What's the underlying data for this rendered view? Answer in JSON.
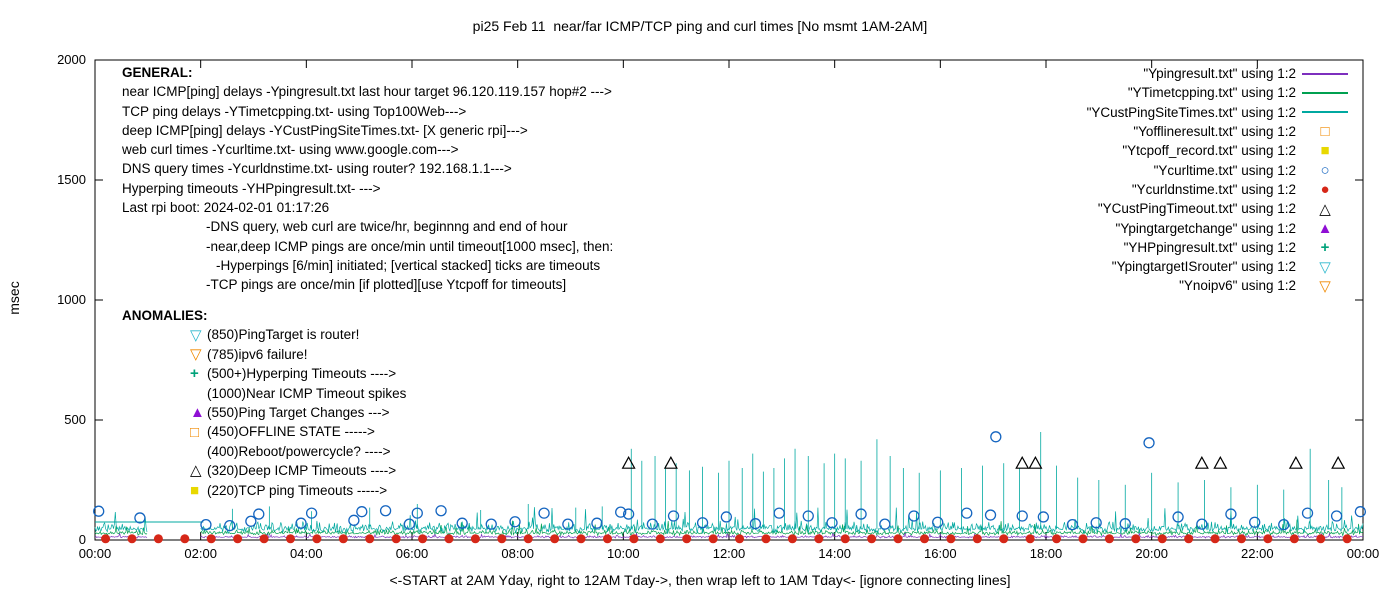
{
  "general": {
    "heading": "GENERAL:",
    "lines": [
      "near ICMP[ping] delays -Ypingresult.txt last hour target 96.120.119.157 hop#2 --->",
      "TCP ping delays -YTimetcpping.txt- using Top100Web--->",
      "deep ICMP[ping] delays -YCustPingSiteTimes.txt- [X generic rpi]--->",
      "web curl times -Ycurltime.txt- using www.google.com--->",
      "DNS query times -Ycurldnstime.txt- using router? 192.168.1.1--->",
      "Hyperping timeouts -YHPpingresult.txt- --->",
      "Last rpi boot: 2024-02-01 01:17:26"
    ],
    "notes": [
      "-DNS query, web curl are twice/hr, beginnng and end of hour",
      "-near,deep ICMP pings are once/min until timeout[1000 msec], then:",
      "-Hyperpings [6/min] initiated; [vertical stacked] ticks are timeouts",
      "-TCP pings are once/min [if plotted][use Ytcpoff for timeouts]"
    ]
  },
  "anomalies": {
    "heading": "ANOMALIES:",
    "items": [
      {
        "symbol": "triangle-down-open",
        "color": "#2FB9CE",
        "label": "(850)PingTarget is router!"
      },
      {
        "symbol": "triangle-down-open",
        "color": "#F08A00",
        "label": "(785)ipv6 failure!"
      },
      {
        "symbol": "plus",
        "color": "#00A27A",
        "label": "(500+)Hyperping Timeouts ---->"
      },
      {
        "symbol": "none",
        "color": "",
        "label": "(1000)Near ICMP Timeout spikes"
      },
      {
        "symbol": "triangle-up-filled",
        "color": "#8F0FD4",
        "label": "(550)Ping Target Changes --->"
      },
      {
        "symbol": "square-open",
        "color": "#F08A00",
        "label": "(450)OFFLINE STATE ----->"
      },
      {
        "symbol": "none",
        "color": "",
        "label": "(400)Reboot/powercycle? ---->"
      },
      {
        "symbol": "triangle-up-open",
        "color": "#000000",
        "label": "(320)Deep ICMP Timeouts ---->"
      },
      {
        "symbol": "square-filled",
        "color": "#E8D800",
        "label": "(220)TCP ping Timeouts ----->"
      }
    ]
  },
  "legend": {
    "entries": [
      {
        "label": "\"Ypingresult.txt\" using 1:2",
        "symbol": "line",
        "color": "#7D2FBE"
      },
      {
        "label": "\"YTimetcpping.txt\" using 1:2",
        "symbol": "line",
        "color": "#00A050"
      },
      {
        "label": "\"YCustPingSiteTimes.txt\" using 1:2",
        "symbol": "line",
        "color": "#00A8A0"
      },
      {
        "label": "\"Yofflineresult.txt\" using 1:2",
        "symbol": "square-open",
        "color": "#F08A00"
      },
      {
        "label": "\"Ytcpoff_record.txt\" using 1:2",
        "symbol": "square-filled",
        "color": "#E8D800"
      },
      {
        "label": "\"Ycurltime.txt\" using 1:2",
        "symbol": "circle-open",
        "color": "#1565C0"
      },
      {
        "label": "\"Ycurldnstime.txt\" using 1:2",
        "symbol": "circle-filled",
        "color": "#D62718"
      },
      {
        "label": "\"YCustPingTimeout.txt\" using 1:2",
        "symbol": "triangle-up-open",
        "color": "#000000"
      },
      {
        "label": "\"Ypingtargetchange\" using 1:2",
        "symbol": "triangle-up-filled",
        "color": "#8F0FD4"
      },
      {
        "label": "\"YHPpingresult.txt\" using 1:2",
        "symbol": "plus",
        "color": "#00A27A"
      },
      {
        "label": "\"YpingtargetISrouter\" using 1:2",
        "symbol": "triangle-down-open",
        "color": "#2FB9CE"
      },
      {
        "label": "\"Ynoipv6\" using 1:2",
        "symbol": "triangle-down-open",
        "color": "#F08A00"
      }
    ]
  },
  "chart_data": {
    "type": "line",
    "title": "pi25 Feb 11  near/far ICMP/TCP ping and curl times [No msmt 1AM-2AM]",
    "xlabel": "<-START at 2AM Yday, right to 12AM Tday->, then wrap left to 1AM Tday<- [ignore connecting lines]",
    "ylabel": "msec",
    "xlim": [
      0,
      24
    ],
    "ylim": [
      0,
      2000
    ],
    "x_tick_hours": [
      0,
      2,
      4,
      6,
      8,
      10,
      12,
      14,
      16,
      18,
      20,
      22,
      24
    ],
    "x_tick_labels": [
      "00:00",
      "02:00",
      "04:00",
      "06:00",
      "08:00",
      "10:00",
      "12:00",
      "14:00",
      "16:00",
      "18:00",
      "20:00",
      "22:00",
      "00:00"
    ],
    "y_ticks": [
      0,
      500,
      1000,
      1500,
      2000
    ],
    "grid": false,
    "legend_position": "top-right-outside-style",
    "series": [
      {
        "name": "Ypingresult.txt",
        "type": "noisy-line",
        "color": "#7D2FBE",
        "baseline": 12,
        "amplitude": 6,
        "seed": 11,
        "segments": [
          [
            0,
            1
          ],
          [
            2,
            24
          ]
        ]
      },
      {
        "name": "YTimetcpping.txt",
        "type": "noisy-line",
        "color": "#00A050",
        "baseline": 28,
        "amplitude": 14,
        "seed": 22,
        "segments": [
          [
            0,
            1
          ],
          [
            2,
            24
          ]
        ]
      },
      {
        "name": "YCustPingSiteTimes.txt",
        "type": "noisy-line",
        "color": "#00A8A0",
        "baseline": 45,
        "amplitude": 28,
        "seed": 33,
        "segments": [
          [
            0,
            1
          ],
          [
            2,
            24
          ]
        ],
        "flat_segments": [
          [
            0,
            2.05,
            75
          ]
        ],
        "spikes": [
          [
            2.6,
            130
          ],
          [
            3.3,
            140
          ],
          [
            4.1,
            120
          ],
          [
            5.2,
            135
          ],
          [
            6.1,
            150
          ],
          [
            7.3,
            125
          ],
          [
            8.2,
            150
          ],
          [
            9.1,
            135
          ],
          [
            9.6,
            140
          ],
          [
            10.15,
            380
          ],
          [
            10.35,
            330
          ],
          [
            10.6,
            350
          ],
          [
            10.8,
            310
          ],
          [
            11.0,
            320
          ],
          [
            11.25,
            290
          ],
          [
            11.5,
            305
          ],
          [
            11.8,
            280
          ],
          [
            12.0,
            330
          ],
          [
            12.25,
            300
          ],
          [
            12.45,
            360
          ],
          [
            12.65,
            285
          ],
          [
            12.85,
            300
          ],
          [
            13.05,
            340
          ],
          [
            13.25,
            380
          ],
          [
            13.5,
            350
          ],
          [
            13.8,
            320
          ],
          [
            14.0,
            360
          ],
          [
            14.2,
            340
          ],
          [
            14.5,
            330
          ],
          [
            14.8,
            420
          ],
          [
            15.05,
            350
          ],
          [
            15.3,
            300
          ],
          [
            15.6,
            280
          ],
          [
            16.0,
            290
          ],
          [
            16.4,
            300
          ],
          [
            16.8,
            310
          ],
          [
            17.2,
            320
          ],
          [
            17.5,
            300
          ],
          [
            17.9,
            450
          ],
          [
            18.2,
            310
          ],
          [
            18.6,
            260
          ],
          [
            19.0,
            250
          ],
          [
            19.5,
            230
          ],
          [
            20.0,
            280
          ],
          [
            20.5,
            240
          ],
          [
            21.0,
            250
          ],
          [
            21.5,
            220
          ],
          [
            22.0,
            230
          ],
          [
            22.5,
            210
          ],
          [
            23.0,
            380
          ],
          [
            23.35,
            250
          ],
          [
            23.6,
            220
          ]
        ]
      },
      {
        "name": "Ycurltime.txt",
        "type": "points",
        "marker": "circle-open",
        "color": "#1565C0",
        "points": [
          [
            0.07,
            120
          ],
          [
            0.85,
            92
          ],
          [
            2.1,
            64
          ],
          [
            2.55,
            60
          ],
          [
            2.95,
            78
          ],
          [
            3.1,
            108
          ],
          [
            3.9,
            70
          ],
          [
            4.1,
            112
          ],
          [
            4.9,
            82
          ],
          [
            5.05,
            118
          ],
          [
            5.5,
            122
          ],
          [
            5.95,
            66
          ],
          [
            6.1,
            112
          ],
          [
            6.55,
            122
          ],
          [
            6.95,
            70
          ],
          [
            7.5,
            66
          ],
          [
            7.95,
            76
          ],
          [
            8.5,
            112
          ],
          [
            8.95,
            66
          ],
          [
            9.5,
            70
          ],
          [
            9.95,
            116
          ],
          [
            10.1,
            108
          ],
          [
            10.55,
            66
          ],
          [
            10.95,
            100
          ],
          [
            11.5,
            72
          ],
          [
            11.95,
            96
          ],
          [
            12.5,
            68
          ],
          [
            12.95,
            112
          ],
          [
            13.5,
            100
          ],
          [
            13.95,
            72
          ],
          [
            14.5,
            108
          ],
          [
            14.95,
            66
          ],
          [
            15.5,
            100
          ],
          [
            15.95,
            74
          ],
          [
            16.5,
            112
          ],
          [
            16.95,
            104
          ],
          [
            17.05,
            430
          ],
          [
            17.55,
            100
          ],
          [
            17.95,
            96
          ],
          [
            18.5,
            64
          ],
          [
            18.95,
            72
          ],
          [
            19.5,
            68
          ],
          [
            19.95,
            405
          ],
          [
            20.5,
            96
          ],
          [
            20.95,
            66
          ],
          [
            21.5,
            108
          ],
          [
            21.95,
            74
          ],
          [
            22.5,
            64
          ],
          [
            22.95,
            112
          ],
          [
            23.5,
            100
          ],
          [
            23.95,
            118
          ]
        ]
      },
      {
        "name": "Ycurldnstime.txt",
        "type": "points-pattern",
        "marker": "circle-filled",
        "color": "#D62718",
        "pattern": {
          "start": 0.2,
          "end": 23.8,
          "step": 0.5,
          "value": 5
        }
      },
      {
        "name": "YCustPingTimeout.txt",
        "type": "points",
        "marker": "triangle-up-open",
        "color": "#000000",
        "points": [
          [
            10.1,
            320
          ],
          [
            10.9,
            320
          ],
          [
            17.55,
            320
          ],
          [
            17.8,
            320
          ],
          [
            20.95,
            320
          ],
          [
            21.3,
            320
          ],
          [
            22.73,
            320
          ],
          [
            23.53,
            320
          ]
        ]
      }
    ]
  }
}
